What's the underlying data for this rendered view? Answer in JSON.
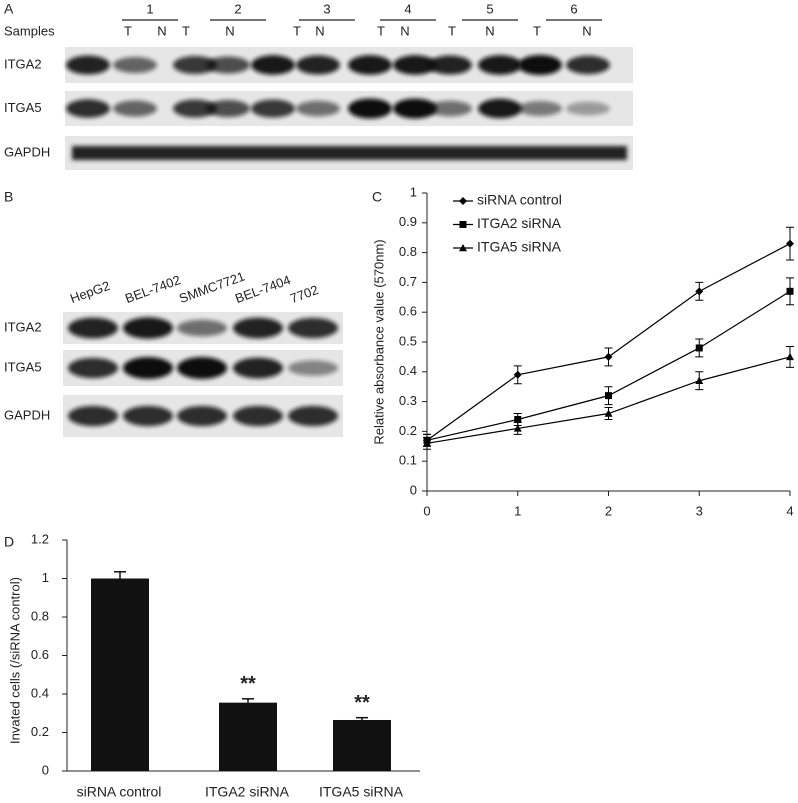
{
  "panel_a": {
    "label": "A",
    "samples_label": "Samples",
    "sample_numbers": [
      "1",
      "2",
      "3",
      "4",
      "5",
      "6"
    ],
    "lane_labels": [
      "T",
      "N",
      "T",
      "N",
      "T",
      "N",
      "T",
      "N",
      "T",
      "N",
      "T",
      "N"
    ],
    "rows": [
      "ITGA2",
      "ITGA5",
      "GAPDH"
    ]
  },
  "panel_b": {
    "label": "B",
    "cell_lines": [
      "HepG2",
      "BEL-7402",
      "SMMC7721",
      "BEL-7404",
      "7702"
    ],
    "rows": [
      "ITGA2",
      "ITGA5",
      "GAPDH"
    ]
  },
  "chart_data": [
    {
      "type": "line",
      "panel_label": "C",
      "y_label": "Relative absorbance value (570nm)",
      "x": [
        0,
        1,
        2,
        3,
        4
      ],
      "series": [
        {
          "name": "siRNA control",
          "color": "#000000",
          "marker": "diamond",
          "values": [
            0.17,
            0.39,
            0.45,
            0.67,
            0.83
          ],
          "errors": [
            0.02,
            0.03,
            0.03,
            0.03,
            0.055
          ]
        },
        {
          "name": "ITGA2 siRNA",
          "color": "#000000",
          "marker": "square",
          "values": [
            0.17,
            0.24,
            0.32,
            0.48,
            0.67
          ],
          "errors": [
            0.02,
            0.02,
            0.03,
            0.03,
            0.045
          ]
        },
        {
          "name": "ITGA5 siRNA",
          "color": "#000000",
          "marker": "triangle",
          "values": [
            0.16,
            0.21,
            0.26,
            0.37,
            0.45
          ],
          "errors": [
            0.02,
            0.02,
            0.02,
            0.03,
            0.035
          ]
        }
      ],
      "xlim": [
        0,
        4
      ],
      "xticks": [
        0,
        1,
        2,
        3,
        4
      ],
      "ylim": [
        0,
        1
      ],
      "yticks": [
        0,
        0.1,
        0.2,
        0.3,
        0.4,
        0.5,
        0.6,
        0.7,
        0.8,
        0.9,
        1
      ],
      "legend": "top-left"
    },
    {
      "type": "bar",
      "panel_label": "D",
      "y_label": "Invated cells (/siRNA control)",
      "categories": [
        "siRNA control",
        "ITGA2 siRNA",
        "ITGA5 siRNA"
      ],
      "values": [
        1,
        0.355,
        0.265
      ],
      "errors": [
        0.035,
        0.02,
        0.012
      ],
      "significance": [
        null,
        "**",
        "**"
      ],
      "color": "#111111",
      "ylim": [
        0,
        1.2
      ],
      "yticks": [
        0,
        0.2,
        0.4,
        0.6,
        0.8,
        1,
        1.2
      ]
    }
  ]
}
